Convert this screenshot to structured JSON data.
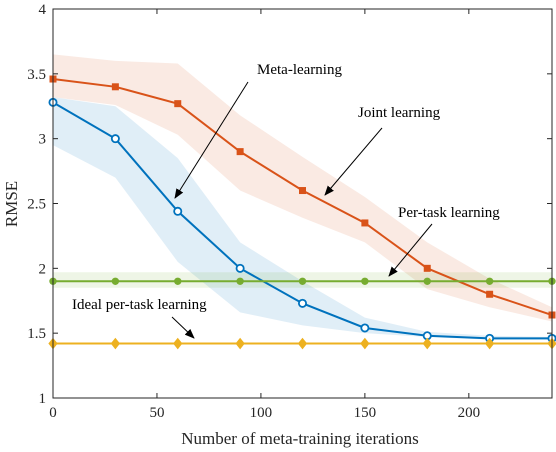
{
  "chart_data": {
    "type": "line",
    "title": "",
    "xlabel": "Number of meta-training iterations",
    "ylabel": "RMSE",
    "xlim": [
      0,
      240
    ],
    "ylim": [
      1,
      4
    ],
    "xticks": [
      0,
      50,
      100,
      150,
      200
    ],
    "yticks": [
      1,
      1.5,
      2,
      2.5,
      3,
      3.5,
      4
    ],
    "grid": false,
    "x": [
      0,
      30,
      60,
      90,
      120,
      150,
      180,
      210,
      240
    ],
    "series": [
      {
        "name": "Meta-learning",
        "color": "#0072BD",
        "marker": "circle",
        "values": [
          3.28,
          3.0,
          2.44,
          2.0,
          1.73,
          1.54,
          1.48,
          1.46,
          1.46
        ],
        "band_lower": [
          2.95,
          2.7,
          2.05,
          1.66,
          1.56,
          1.5,
          1.47,
          1.45,
          1.45
        ],
        "band_upper": [
          3.32,
          3.25,
          2.85,
          2.2,
          1.9,
          1.62,
          1.51,
          1.48,
          1.47
        ]
      },
      {
        "name": "Joint learning",
        "color": "#D95319",
        "marker": "square",
        "values": [
          3.46,
          3.4,
          3.27,
          2.9,
          2.6,
          2.35,
          2.0,
          1.8,
          1.64
        ],
        "band_lower": [
          3.32,
          3.26,
          3.03,
          2.6,
          2.39,
          2.2,
          1.84,
          1.7,
          1.59
        ],
        "band_upper": [
          3.65,
          3.6,
          3.58,
          3.18,
          2.86,
          2.55,
          2.2,
          1.92,
          1.7
        ]
      },
      {
        "name": "Per-task learning",
        "color": "#77AC30",
        "marker": "circle",
        "values": [
          1.9,
          1.9,
          1.9,
          1.9,
          1.9,
          1.9,
          1.9,
          1.9,
          1.9
        ],
        "band_lower": [
          1.85,
          1.85,
          1.85,
          1.85,
          1.85,
          1.85,
          1.85,
          1.85,
          1.85
        ],
        "band_upper": [
          1.97,
          1.97,
          1.97,
          1.97,
          1.97,
          1.97,
          1.97,
          1.97,
          1.97
        ]
      },
      {
        "name": "Ideal per-task learning",
        "color": "#EDB120",
        "marker": "diamond",
        "values": [
          1.42,
          1.42,
          1.42,
          1.42,
          1.42,
          1.42,
          1.42,
          1.42,
          1.42
        ]
      }
    ],
    "annotations": [
      {
        "text": "Meta-learning",
        "series": 0
      },
      {
        "text": "Joint learning",
        "series": 1
      },
      {
        "text": "Per-task learning",
        "series": 2
      },
      {
        "text": "Ideal per-task learning",
        "series": 3
      }
    ]
  }
}
